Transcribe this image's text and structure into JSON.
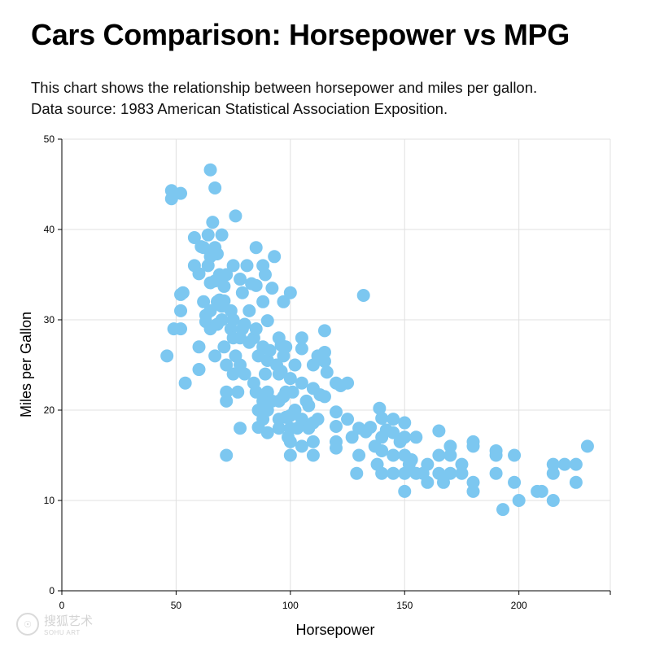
{
  "header": {
    "title": "Cars Comparison: Horsepower vs MPG",
    "subtitle_line1": "This chart shows the relationship between horsepower and miles per gallon.",
    "subtitle_line2": "Data source: 1983 American Statistical Association Exposition."
  },
  "watermark": {
    "text": "搜狐艺术",
    "subtext": "SOHU ART",
    "icon": "seal-logo"
  },
  "colors": {
    "point": "#7cc7f0",
    "grid": "#e0e0e0",
    "axis": "#000000"
  },
  "chart_data": {
    "type": "scatter",
    "title": "Cars Comparison: Horsepower vs MPG",
    "xlabel": "Horsepower",
    "ylabel": "Miles per Gallon",
    "xlim": [
      0,
      240
    ],
    "ylim": [
      0,
      50
    ],
    "xticks": [
      0,
      50,
      100,
      150,
      200
    ],
    "yticks": [
      0,
      10,
      20,
      30,
      40,
      50
    ],
    "grid": true,
    "legend": "none",
    "points": [
      [
        46,
        26
      ],
      [
        48,
        44.3
      ],
      [
        48,
        43.4
      ],
      [
        49,
        29
      ],
      [
        52,
        44
      ],
      [
        52,
        32.8
      ],
      [
        52,
        31
      ],
      [
        52,
        29
      ],
      [
        53,
        33
      ],
      [
        54,
        23
      ],
      [
        58,
        39.1
      ],
      [
        58,
        36
      ],
      [
        60,
        35.1
      ],
      [
        60,
        27
      ],
      [
        60,
        24.5
      ],
      [
        61,
        38.1
      ],
      [
        62,
        32
      ],
      [
        62,
        38
      ],
      [
        63,
        29.8
      ],
      [
        63,
        30.5
      ],
      [
        64,
        39.4
      ],
      [
        64,
        36
      ],
      [
        65,
        46.6
      ],
      [
        65,
        37
      ],
      [
        65,
        34.1
      ],
      [
        65,
        31
      ],
      [
        65,
        29
      ],
      [
        66,
        40.8
      ],
      [
        67,
        44.6
      ],
      [
        67,
        38
      ],
      [
        67,
        34.3
      ],
      [
        67,
        26
      ],
      [
        68,
        32
      ],
      [
        68,
        29.5
      ],
      [
        68,
        37.3
      ],
      [
        69,
        32.2
      ],
      [
        69,
        35
      ],
      [
        70,
        39.4
      ],
      [
        70,
        31.5
      ],
      [
        70,
        30
      ],
      [
        71,
        32.1
      ],
      [
        71,
        27
      ],
      [
        71,
        33.7
      ],
      [
        72,
        35
      ],
      [
        72,
        25
      ],
      [
        72,
        15
      ],
      [
        72,
        21
      ],
      [
        72,
        22
      ],
      [
        74,
        29
      ],
      [
        74,
        31
      ],
      [
        75,
        36
      ],
      [
        75,
        28
      ],
      [
        75,
        24
      ],
      [
        75,
        30
      ],
      [
        76,
        41.5
      ],
      [
        76,
        26
      ],
      [
        77,
        22
      ],
      [
        78,
        28
      ],
      [
        78,
        25
      ],
      [
        78,
        18
      ],
      [
        78,
        34.5
      ],
      [
        79,
        29
      ],
      [
        79,
        33
      ],
      [
        80,
        29.5
      ],
      [
        80,
        24
      ],
      [
        81,
        36
      ],
      [
        82,
        27.5
      ],
      [
        82,
        31
      ],
      [
        83,
        34
      ],
      [
        84,
        28
      ],
      [
        84,
        23
      ],
      [
        85,
        38
      ],
      [
        85,
        33.8
      ],
      [
        85,
        29
      ],
      [
        85,
        22
      ],
      [
        86,
        20
      ],
      [
        86,
        18.1
      ],
      [
        86,
        26
      ],
      [
        88,
        36
      ],
      [
        88,
        32
      ],
      [
        88,
        27
      ],
      [
        88,
        21
      ],
      [
        88,
        19
      ],
      [
        89,
        24
      ],
      [
        89,
        35
      ],
      [
        90,
        25.5
      ],
      [
        90,
        22
      ],
      [
        90,
        20
      ],
      [
        90,
        17.5
      ],
      [
        90,
        29.9
      ],
      [
        91,
        26.6
      ],
      [
        92,
        33.5
      ],
      [
        92,
        21
      ],
      [
        93,
        37
      ],
      [
        94,
        25
      ],
      [
        95,
        28
      ],
      [
        95,
        24
      ],
      [
        95,
        18
      ],
      [
        95,
        19
      ],
      [
        95,
        21
      ],
      [
        96,
        27.2
      ],
      [
        96,
        24.3
      ],
      [
        97,
        32
      ],
      [
        97,
        26
      ],
      [
        97,
        21.5
      ],
      [
        98,
        27
      ],
      [
        98,
        22
      ],
      [
        98,
        19.2
      ],
      [
        99,
        17
      ],
      [
        100,
        33
      ],
      [
        100,
        23.5
      ],
      [
        100,
        19.4
      ],
      [
        100,
        18
      ],
      [
        100,
        15
      ],
      [
        100,
        16.5
      ],
      [
        101,
        22
      ],
      [
        102,
        25
      ],
      [
        102,
        20
      ],
      [
        103,
        18
      ],
      [
        105,
        28
      ],
      [
        105,
        26.8
      ],
      [
        105,
        23
      ],
      [
        105,
        19
      ],
      [
        105,
        16
      ],
      [
        107,
        21
      ],
      [
        108,
        20.5
      ],
      [
        108,
        18
      ],
      [
        110,
        25
      ],
      [
        110,
        22.4
      ],
      [
        110,
        18.6
      ],
      [
        110,
        16.5
      ],
      [
        110,
        15
      ],
      [
        112,
        26
      ],
      [
        112,
        19
      ],
      [
        113,
        21.7
      ],
      [
        115,
        28.8
      ],
      [
        115,
        26.4
      ],
      [
        115,
        25.4
      ],
      [
        115,
        21.5
      ],
      [
        116,
        24.2
      ],
      [
        120,
        23
      ],
      [
        120,
        19.8
      ],
      [
        120,
        18.2
      ],
      [
        120,
        16.5
      ],
      [
        120,
        15.8
      ],
      [
        122,
        22.7
      ],
      [
        125,
        23
      ],
      [
        125,
        19
      ],
      [
        127,
        17
      ],
      [
        129,
        13
      ],
      [
        130,
        18
      ],
      [
        130,
        15
      ],
      [
        132,
        32.7
      ],
      [
        133,
        17.6
      ],
      [
        135,
        18.1
      ],
      [
        137,
        16
      ],
      [
        138,
        14
      ],
      [
        139,
        20.2
      ],
      [
        140,
        19.1
      ],
      [
        140,
        17
      ],
      [
        140,
        15.5
      ],
      [
        140,
        13
      ],
      [
        142,
        17.8
      ],
      [
        145,
        19
      ],
      [
        145,
        17.5
      ],
      [
        145,
        15
      ],
      [
        145,
        13
      ],
      [
        148,
        16.5
      ],
      [
        150,
        18.6
      ],
      [
        150,
        17
      ],
      [
        150,
        15
      ],
      [
        150,
        13
      ],
      [
        150,
        11
      ],
      [
        152,
        14
      ],
      [
        153,
        14.5
      ],
      [
        155,
        17
      ],
      [
        155,
        13
      ],
      [
        158,
        13
      ],
      [
        160,
        12
      ],
      [
        160,
        14
      ],
      [
        165,
        17.7
      ],
      [
        165,
        15
      ],
      [
        165,
        13
      ],
      [
        167,
        12
      ],
      [
        170,
        16
      ],
      [
        170,
        15
      ],
      [
        170,
        13
      ],
      [
        175,
        14
      ],
      [
        175,
        13
      ],
      [
        180,
        16.5
      ],
      [
        180,
        16
      ],
      [
        180,
        12
      ],
      [
        180,
        11
      ],
      [
        190,
        15.5
      ],
      [
        190,
        15
      ],
      [
        190,
        13
      ],
      [
        193,
        9
      ],
      [
        198,
        15
      ],
      [
        198,
        12
      ],
      [
        200,
        10
      ],
      [
        208,
        11
      ],
      [
        210,
        11
      ],
      [
        215,
        14
      ],
      [
        215,
        13
      ],
      [
        215,
        10
      ],
      [
        220,
        14
      ],
      [
        225,
        14
      ],
      [
        225,
        12
      ],
      [
        230,
        16
      ]
    ]
  }
}
